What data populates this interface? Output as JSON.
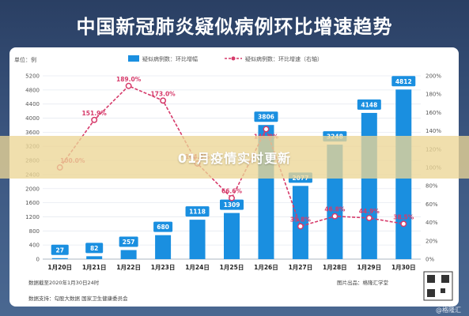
{
  "header": {
    "title": "中国新冠肺炎疑似病例环比增速趋势"
  },
  "banner": {
    "text": "01月疫情实时更新"
  },
  "watermark": {
    "text": "@格隆汇"
  },
  "footer": {
    "data_cutoff": "数据截至2020年1月30日24时",
    "source": "数据支持：勾股大数据 国家卫生健康委员会",
    "producer": "图片出品：格隆汇学堂"
  },
  "chart_data": {
    "type": "bar",
    "unit_label": "单位：例",
    "categories": [
      "1月20日",
      "1月21日",
      "1月22日",
      "1月23日",
      "1月24日",
      "1月25日",
      "1月26日",
      "1月27日",
      "1月28日",
      "1月29日",
      "1月30日"
    ],
    "series": [
      {
        "name": "疑似病例数：环比增幅",
        "type": "bar",
        "color": "#1a8fe0",
        "values": [
          27,
          82,
          257,
          680,
          1118,
          1309,
          3806,
          2077,
          3248,
          4148,
          4812
        ]
      },
      {
        "name": "疑似病例数：环比增速（右轴）",
        "type": "line",
        "color": "#d63a6a",
        "values": [
          100.0,
          151.9,
          189.0,
          173.0,
          104.3,
          66.6,
          141.8,
          35.8,
          46.8,
          44.9,
          38.5
        ],
        "labels": [
          "100.0%",
          "151.9%",
          "189.0%",
          "173.0%",
          "104.3%",
          "66.6%",
          "141.8%",
          "35.8%",
          "46.8%",
          "44.9%",
          "38.5%"
        ]
      }
    ],
    "y_left": {
      "min": 0,
      "max": 5200,
      "step": 400
    },
    "y_right": {
      "min": 0,
      "max": 200,
      "step": 20,
      "suffix": "%"
    },
    "legend_position": "top-center",
    "grid": true
  }
}
